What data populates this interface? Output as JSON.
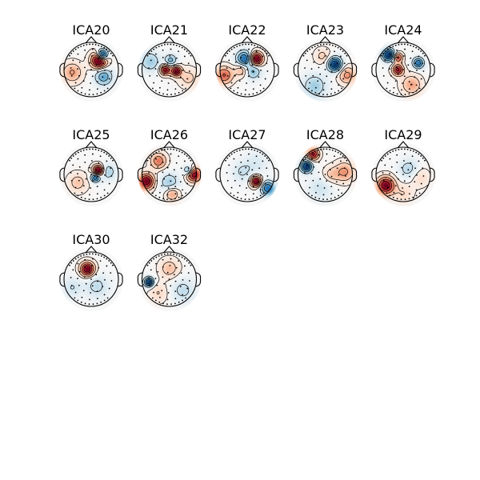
{
  "figure": {
    "components": [
      {
        "label": "ICA20",
        "blobs": [
          {
            "u": 0.28,
            "v": -0.35,
            "amp": 1.0,
            "s": 0.2
          },
          {
            "u": 0.4,
            "v": -0.55,
            "amp": -1.0,
            "s": 0.14
          },
          {
            "u": 0.45,
            "v": 0.25,
            "amp": -0.45,
            "s": 0.22
          },
          {
            "u": -0.7,
            "v": 0.1,
            "amp": 0.35,
            "s": 0.25
          }
        ]
      },
      {
        "label": "ICA21",
        "blobs": [
          {
            "u": -0.15,
            "v": 0.0,
            "amp": 0.9,
            "s": 0.13
          },
          {
            "u": 0.25,
            "v": 0.05,
            "amp": 0.95,
            "s": 0.13
          },
          {
            "u": 0.05,
            "v": -0.35,
            "amp": -0.45,
            "s": 0.15
          },
          {
            "u": -0.7,
            "v": -0.3,
            "amp": -0.35,
            "s": 0.25
          },
          {
            "u": 0.7,
            "v": 0.3,
            "amp": 0.25,
            "s": 0.25
          }
        ]
      },
      {
        "label": "ICA22",
        "blobs": [
          {
            "u": 0.32,
            "v": -0.4,
            "amp": 1.0,
            "s": 0.17
          },
          {
            "u": -0.1,
            "v": -0.4,
            "amp": -0.75,
            "s": 0.2
          },
          {
            "u": -0.85,
            "v": 0.2,
            "amp": 0.55,
            "s": 0.22
          },
          {
            "u": 0.2,
            "v": 0.05,
            "amp": -0.4,
            "s": 0.2
          },
          {
            "u": -0.2,
            "v": 0.0,
            "amp": 0.35,
            "s": 0.18
          }
        ]
      },
      {
        "label": "ICA23",
        "blobs": [
          {
            "u": 0.35,
            "v": -0.2,
            "amp": -1.0,
            "s": 0.18
          },
          {
            "u": 0.8,
            "v": 0.2,
            "amp": 0.45,
            "s": 0.22
          },
          {
            "u": -0.4,
            "v": 0.6,
            "amp": -0.35,
            "s": 0.3
          },
          {
            "u": -0.1,
            "v": -0.5,
            "amp": 0.25,
            "s": 0.2
          }
        ]
      },
      {
        "label": "ICA24",
        "blobs": [
          {
            "u": -0.55,
            "v": -0.55,
            "amp": -1.0,
            "s": 0.16
          },
          {
            "u": 0.55,
            "v": -0.25,
            "amp": -0.75,
            "s": 0.14
          },
          {
            "u": -0.2,
            "v": 0.0,
            "amp": 0.85,
            "s": 0.14
          },
          {
            "u": -0.2,
            "v": -0.45,
            "amp": 0.7,
            "s": 0.12
          },
          {
            "u": 0.3,
            "v": 0.55,
            "amp": 0.4,
            "s": 0.25
          }
        ]
      },
      {
        "label": "ICA25",
        "blobs": [
          {
            "u": 0.25,
            "v": -0.15,
            "amp": 1.0,
            "s": 0.14
          },
          {
            "u": 0.15,
            "v": 0.1,
            "amp": -0.75,
            "s": 0.12
          },
          {
            "u": 0.6,
            "v": -0.1,
            "amp": -0.3,
            "s": 0.2
          },
          {
            "u": -0.5,
            "v": 0.3,
            "amp": 0.25,
            "s": 0.25
          }
        ]
      },
      {
        "label": "ICA26",
        "blobs": [
          {
            "u": -0.85,
            "v": 0.25,
            "amp": 1.0,
            "s": 0.2
          },
          {
            "u": 0.9,
            "v": 0.0,
            "amp": 0.95,
            "s": 0.18
          },
          {
            "u": -0.4,
            "v": -0.5,
            "amp": 0.55,
            "s": 0.2
          },
          {
            "u": 0.7,
            "v": -0.15,
            "amp": -0.6,
            "s": 0.12
          },
          {
            "u": 0.0,
            "v": 0.3,
            "amp": -0.35,
            "s": 0.25
          },
          {
            "u": 0.1,
            "v": 0.7,
            "amp": 0.45,
            "s": 0.18
          }
        ]
      },
      {
        "label": "ICA27",
        "blobs": [
          {
            "u": 0.32,
            "v": 0.25,
            "amp": 1.0,
            "s": 0.14
          },
          {
            "u": 0.75,
            "v": 0.5,
            "amp": -0.75,
            "s": 0.18
          },
          {
            "u": -0.2,
            "v": -0.1,
            "amp": -0.2,
            "s": 0.25
          },
          {
            "u": 0.3,
            "v": -0.4,
            "amp": -0.15,
            "s": 0.3
          }
        ]
      },
      {
        "label": "ICA28",
        "blobs": [
          {
            "u": -0.7,
            "v": -0.3,
            "amp": -1.0,
            "s": 0.15
          },
          {
            "u": -0.45,
            "v": -0.75,
            "amp": 0.85,
            "s": 0.15
          },
          {
            "u": 0.7,
            "v": -0.1,
            "amp": 0.45,
            "s": 0.25
          },
          {
            "u": 0.2,
            "v": 0.0,
            "amp": 0.25,
            "s": 0.2
          },
          {
            "u": -0.2,
            "v": 0.5,
            "amp": -0.2,
            "s": 0.3
          }
        ]
      },
      {
        "label": "ICA29",
        "blobs": [
          {
            "u": -0.65,
            "v": 0.4,
            "amp": 1.0,
            "s": 0.22
          },
          {
            "u": 0.2,
            "v": -0.2,
            "amp": -0.3,
            "s": 0.25
          },
          {
            "u": 0.6,
            "v": 0.1,
            "amp": 0.2,
            "s": 0.25
          },
          {
            "u": 0.0,
            "v": 0.7,
            "amp": 0.2,
            "s": 0.25
          }
        ]
      },
      {
        "label": "ICA30",
        "blobs": [
          {
            "u": -0.15,
            "v": -0.38,
            "amp": 1.0,
            "s": 0.18
          },
          {
            "u": 0.2,
            "v": 0.25,
            "amp": -0.25,
            "s": 0.3
          },
          {
            "u": -0.7,
            "v": 0.3,
            "amp": -0.2,
            "s": 0.25
          }
        ]
      },
      {
        "label": "ICA32",
        "blobs": [
          {
            "u": -0.75,
            "v": 0.1,
            "amp": -1.0,
            "s": 0.12
          },
          {
            "u": 0.0,
            "v": -0.4,
            "amp": 0.3,
            "s": 0.25
          },
          {
            "u": 0.5,
            "v": 0.4,
            "amp": -0.25,
            "s": 0.3
          },
          {
            "u": -0.4,
            "v": 0.5,
            "amp": 0.2,
            "s": 0.25
          }
        ]
      }
    ]
  }
}
